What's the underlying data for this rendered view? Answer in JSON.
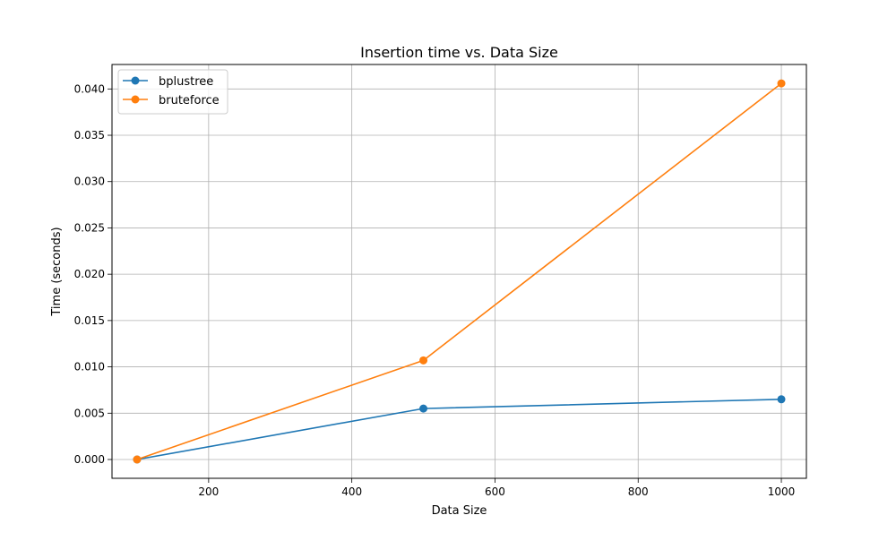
{
  "chart_data": {
    "type": "line",
    "title": "Insertion time vs. Data Size",
    "xlabel": "Data Size",
    "ylabel": "Time (seconds)",
    "x": [
      100,
      500,
      1000
    ],
    "xlim": [
      65,
      1035
    ],
    "ylim": [
      -0.00203,
      0.04264
    ],
    "xticks": [
      200,
      400,
      600,
      800,
      1000
    ],
    "xtick_labels": [
      "200",
      "400",
      "600",
      "800",
      "1000"
    ],
    "yticks": [
      0.0,
      0.005,
      0.01,
      0.015,
      0.02,
      0.025,
      0.03,
      0.035,
      0.04
    ],
    "ytick_labels": [
      "0.000",
      "0.005",
      "0.010",
      "0.015",
      "0.020",
      "0.025",
      "0.030",
      "0.035",
      "0.040"
    ],
    "grid": true,
    "legend_position": "top-left",
    "series": [
      {
        "name": "bplustree",
        "color": "#1f77b4",
        "values": [
          0.0,
          0.0055,
          0.0065
        ]
      },
      {
        "name": "bruteforce",
        "color": "#ff7f0e",
        "values": [
          0.0,
          0.0107,
          0.0406
        ]
      }
    ]
  }
}
